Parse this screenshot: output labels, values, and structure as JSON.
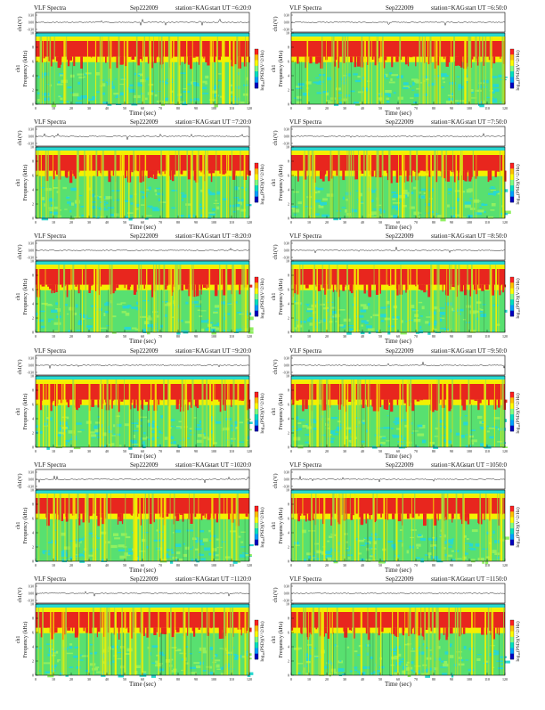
{
  "page": {
    "colorbar_label": "log",
    "colorbar_label_sub": "10",
    "colorbar_label_rest": "(PSD)(V^2/Hz)",
    "colorbar_colors": [
      "#ff2020",
      "#ffc000",
      "#ffff00",
      "#80ff80",
      "#00e0c0",
      "#00a0ff",
      "#0000c0"
    ],
    "spectrogram_colors": {
      "red": "#e8261e",
      "yellow": "#f4f000",
      "green": "#58e070",
      "cyan": "#28d8d0",
      "blue": "#2060e0"
    }
  },
  "chart_data": [
    {
      "type": "heatmap",
      "title": "VLF Spectra",
      "date": "Sep222009",
      "station": "station=KAG",
      "start_label": "start UT =6:20:0",
      "ch_label": "ch1(V)",
      "freq_label": "Frequency (kHz)",
      "xlabel": "Time (sec)",
      "xticks": [
        0,
        10,
        20,
        30,
        40,
        50,
        60,
        70,
        80,
        90,
        100,
        110,
        120
      ],
      "yticks": [
        0,
        2,
        4,
        6,
        8,
        10
      ],
      "ch_ticks": [
        "0.30",
        "0.00",
        "-0.30"
      ],
      "xlim": [
        0,
        120
      ],
      "ylim": [
        0,
        10
      ]
    },
    {
      "type": "heatmap",
      "title": "VLF Spectra",
      "date": "Sep222009",
      "station": "station=KAG",
      "start_label": "start UT =6:50:0",
      "ch_label": "ch1(V)",
      "freq_label": "Frequency (kHz)",
      "xlabel": "Time (sec)",
      "xticks": [
        0,
        10,
        20,
        30,
        40,
        50,
        60,
        70,
        80,
        90,
        100,
        110,
        120
      ],
      "yticks": [
        0,
        2,
        4,
        6,
        8,
        10
      ],
      "ch_ticks": [
        "0.30",
        "0.00",
        "-0.30"
      ],
      "xlim": [
        0,
        120
      ],
      "ylim": [
        0,
        10
      ]
    },
    {
      "type": "heatmap",
      "title": "VLF Spectra",
      "date": "Sep222009",
      "station": "station=KAG",
      "start_label": "start UT =7:20:0",
      "ch_label": "ch1(V)",
      "freq_label": "Frequency (kHz)",
      "xlabel": "Time (sec)",
      "xticks": [
        0,
        10,
        20,
        30,
        40,
        50,
        60,
        70,
        80,
        90,
        100,
        110,
        120
      ],
      "yticks": [
        0,
        2,
        4,
        6,
        8,
        10
      ],
      "ch_ticks": [
        "0.30",
        "0.00",
        "-0.30"
      ],
      "xlim": [
        0,
        120
      ],
      "ylim": [
        0,
        10
      ]
    },
    {
      "type": "heatmap",
      "title": "VLF Spectra",
      "date": "Sep222009",
      "station": "station=KAG",
      "start_label": "start UT =7:50:0",
      "ch_label": "ch1(V)",
      "freq_label": "Frequency (kHz)",
      "xlabel": "Time (sec)",
      "xticks": [
        0,
        10,
        20,
        30,
        40,
        50,
        60,
        70,
        80,
        90,
        100,
        110,
        120
      ],
      "yticks": [
        0,
        2,
        4,
        6,
        8,
        10
      ],
      "ch_ticks": [
        "0.30",
        "0.00",
        "-0.30"
      ],
      "xlim": [
        0,
        120
      ],
      "ylim": [
        0,
        10
      ]
    },
    {
      "type": "heatmap",
      "title": "VLF Spectra",
      "date": "Sep222009",
      "station": "station=KAG",
      "start_label": "start UT =8:20:0",
      "ch_label": "ch1(V)",
      "freq_label": "Frequency (kHz)",
      "xlabel": "Time (sec)",
      "xticks": [
        0,
        10,
        20,
        30,
        40,
        50,
        60,
        70,
        80,
        90,
        100,
        110,
        120
      ],
      "yticks": [
        0,
        2,
        4,
        6,
        8,
        10
      ],
      "ch_ticks": [
        "0.30",
        "0.00",
        "-0.30"
      ],
      "xlim": [
        0,
        120
      ],
      "ylim": [
        0,
        10
      ]
    },
    {
      "type": "heatmap",
      "title": "VLF Spectra",
      "date": "Sep222009",
      "station": "station=KAG",
      "start_label": "start UT =8:50:0",
      "ch_label": "ch1(V)",
      "freq_label": "Frequency (kHz)",
      "xlabel": "Time (sec)",
      "xticks": [
        0,
        10,
        20,
        30,
        40,
        50,
        60,
        70,
        80,
        90,
        100,
        110,
        120
      ],
      "yticks": [
        0,
        2,
        4,
        6,
        8,
        10
      ],
      "ch_ticks": [
        "0.30",
        "0.00",
        "-0.30"
      ],
      "xlim": [
        0,
        120
      ],
      "ylim": [
        0,
        10
      ]
    },
    {
      "type": "heatmap",
      "title": "VLF Spectra",
      "date": "Sep222009",
      "station": "station=KAG",
      "start_label": "start UT =9:20:0",
      "ch_label": "ch1(V)",
      "freq_label": "Frequency (kHz)",
      "xlabel": "Time (sec)",
      "xticks": [
        0,
        10,
        20,
        30,
        40,
        50,
        60,
        70,
        80,
        90,
        100,
        110,
        120
      ],
      "yticks": [
        0,
        2,
        4,
        6,
        8,
        10
      ],
      "ch_ticks": [
        "0.30",
        "0.00",
        "-0.30"
      ],
      "xlim": [
        0,
        120
      ],
      "ylim": [
        0,
        10
      ]
    },
    {
      "type": "heatmap",
      "title": "VLF Spectra",
      "date": "Sep222009",
      "station": "station=KAG",
      "start_label": "start UT =9:50:0",
      "ch_label": "ch1(V)",
      "freq_label": "Frequency (kHz)",
      "xlabel": "Time (sec)",
      "xticks": [
        0,
        10,
        20,
        30,
        40,
        50,
        60,
        70,
        80,
        90,
        100,
        110,
        120
      ],
      "yticks": [
        0,
        2,
        4,
        6,
        8,
        10
      ],
      "ch_ticks": [
        "0.30",
        "0.00",
        "-0.30"
      ],
      "xlim": [
        0,
        120
      ],
      "ylim": [
        0,
        10
      ]
    },
    {
      "type": "heatmap",
      "title": "VLF Spectra",
      "date": "Sep222009",
      "station": "station=KAG",
      "start_label": "start UT =1020:0",
      "ch_label": "ch1(V)",
      "freq_label": "Frequency (kHz)",
      "xlabel": "Time (sec)",
      "xticks": [
        0,
        10,
        20,
        30,
        40,
        50,
        60,
        70,
        80,
        90,
        100,
        110,
        120
      ],
      "yticks": [
        0,
        2,
        4,
        6,
        8,
        10
      ],
      "ch_ticks": [
        "0.30",
        "0.00",
        "-0.30"
      ],
      "xlim": [
        0,
        120
      ],
      "ylim": [
        0,
        10
      ]
    },
    {
      "type": "heatmap",
      "title": "VLF Spectra",
      "date": "Sep222009",
      "station": "station=KAG",
      "start_label": "start UT =1050:0",
      "ch_label": "ch1(V)",
      "freq_label": "Frequency (kHz)",
      "xlabel": "Time (sec)",
      "xticks": [
        0,
        10,
        20,
        30,
        40,
        50,
        60,
        70,
        80,
        90,
        100,
        110,
        120
      ],
      "yticks": [
        0,
        2,
        4,
        6,
        8,
        10
      ],
      "ch_ticks": [
        "0.30",
        "0.00",
        "-0.30"
      ],
      "xlim": [
        0,
        120
      ],
      "ylim": [
        0,
        10
      ]
    },
    {
      "type": "heatmap",
      "title": "VLF Spectra",
      "date": "Sep222009",
      "station": "station=KAG",
      "start_label": "start UT =1120:0",
      "ch_label": "ch1(V)",
      "freq_label": "Frequency (kHz)",
      "xlabel": "Time (sec)",
      "xticks": [
        0,
        10,
        20,
        30,
        40,
        50,
        60,
        70,
        80,
        90,
        100,
        110,
        120
      ],
      "yticks": [
        0,
        2,
        4,
        6,
        8,
        10
      ],
      "ch_ticks": [
        "0.30",
        "0.00",
        "-0.30"
      ],
      "xlim": [
        0,
        120
      ],
      "ylim": [
        0,
        10
      ]
    },
    {
      "type": "heatmap",
      "title": "VLF Spectra",
      "date": "Sep222009",
      "station": "station=KAG",
      "start_label": "start UT =1150:0",
      "ch_label": "ch1(V)",
      "freq_label": "Frequency (kHz)",
      "xlabel": "Time (sec)",
      "xticks": [
        0,
        10,
        20,
        30,
        40,
        50,
        60,
        70,
        80,
        90,
        100,
        110,
        120
      ],
      "yticks": [
        0,
        2,
        4,
        6,
        8,
        10
      ],
      "ch_ticks": [
        "0.30",
        "0.00",
        "-0.30"
      ],
      "xlim": [
        0,
        120
      ],
      "ylim": [
        0,
        10
      ]
    }
  ]
}
